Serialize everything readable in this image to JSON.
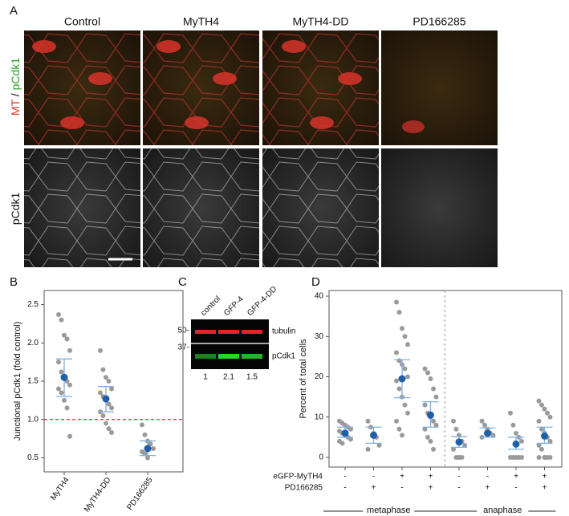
{
  "panel_a": {
    "label": "A",
    "columns": [
      "Control",
      "MyTH4",
      "MyTH4-DD",
      "PD166285"
    ],
    "rows": [
      {
        "parts": [
          "MT",
          " / ",
          "pCdk1"
        ]
      },
      {
        "parts": [
          "pCdk1"
        ]
      }
    ]
  },
  "panel_c": {
    "label": "C",
    "lanes": [
      "control",
      "GFP-4",
      "GFP-4-DD"
    ],
    "markers": [
      "50-",
      "37-"
    ],
    "bands": [
      "tubulin",
      "pCdk1"
    ],
    "ratios": [
      "1",
      "2.1",
      "1.5"
    ]
  },
  "chart_data": [
    {
      "type": "dotplot",
      "label": "B",
      "y_label": "Junctional pCdk1 (fold control)",
      "categories": [
        "MyTH4",
        "MyTH4-DD",
        "PD166285"
      ],
      "points": [
        [
          2.37,
          2.3,
          2.1,
          2.05,
          1.9,
          1.75,
          1.62,
          1.55,
          1.5,
          1.45,
          1.4,
          1.35,
          1.25,
          1.15,
          0.78
        ],
        [
          1.9,
          1.65,
          1.55,
          1.5,
          1.4,
          1.35,
          1.3,
          1.25,
          1.2,
          1.15,
          1.1,
          1.05,
          0.95,
          0.88,
          0.83
        ],
        [
          0.93,
          0.8,
          0.72,
          0.68,
          0.62,
          0.58,
          0.55,
          0.5
        ]
      ],
      "means": [
        1.55,
        1.27,
        0.62
      ],
      "ci_low": [
        1.3,
        1.1,
        0.53
      ],
      "ci_high": [
        1.79,
        1.43,
        0.72
      ],
      "reference_line": 1,
      "reference_color": "#c0392b",
      "point_color": "#9a9a9a",
      "mean_color": "#1f5fa8",
      "ci_color": "#7fb0e0",
      "ylim": [
        0.4,
        2.6
      ],
      "yticks": [
        0.5,
        {
          "value": 1,
          "label": "1.0"
        },
        1.5,
        {
          "value": 2,
          "label": "2.0"
        },
        2.5
      ]
    },
    {
      "type": "dotplot",
      "label": "D",
      "y_label": "Percent of total cells",
      "categories": [
        null,
        null,
        null,
        null,
        null,
        null,
        null,
        null
      ],
      "conditions": [
        {
          "name": "eGFP-MyTH4",
          "signs": [
            "-",
            "-",
            "+",
            "+",
            "-",
            "-",
            "+",
            "+"
          ]
        },
        {
          "name": "PD166285",
          "signs": [
            "-",
            "+",
            "-",
            "+",
            "-",
            "+",
            "-",
            "+"
          ]
        }
      ],
      "groups": [
        "metaphase",
        "anaphase"
      ],
      "points": [
        [
          9,
          8.5,
          8,
          7.5,
          7,
          6.5,
          6,
          5.5,
          5,
          4.5,
          4,
          3.5
        ],
        [
          9,
          7.5,
          6,
          5,
          3,
          2
        ],
        [
          38.5,
          36,
          32,
          30,
          28,
          26,
          24,
          23,
          22,
          20,
          19,
          17,
          15,
          13,
          11,
          9,
          7,
          5.5
        ],
        [
          22,
          21,
          19.5,
          17,
          15,
          13,
          11,
          10,
          9,
          8,
          7,
          5,
          4,
          2
        ],
        [
          9,
          7,
          5.5,
          4,
          3,
          2,
          0,
          0,
          0
        ],
        [
          9,
          8,
          7,
          6,
          5.5,
          5
        ],
        [
          11,
          8,
          6,
          5,
          4,
          0,
          0,
          0,
          0,
          0
        ],
        [
          14,
          13,
          12,
          11,
          10,
          9,
          7,
          6,
          5,
          4,
          3,
          2,
          0,
          0,
          0,
          0
        ]
      ],
      "means": [
        6,
        5.5,
        19.5,
        10.5,
        3.8,
        6,
        3.3,
        5.3
      ],
      "ci_low": [
        5,
        3.5,
        14.8,
        7.5,
        2.5,
        5,
        2,
        3.5
      ],
      "ci_high": [
        7.5,
        7.5,
        24.2,
        13.8,
        5.2,
        7.3,
        5,
        7.5
      ],
      "point_color": "#9a9a9a",
      "mean_color": "#1f5fa8",
      "ci_color": "#7fb0e0",
      "ylim": [
        -2,
        41
      ],
      "yticks": [
        0,
        10,
        20,
        30,
        40
      ]
    }
  ]
}
